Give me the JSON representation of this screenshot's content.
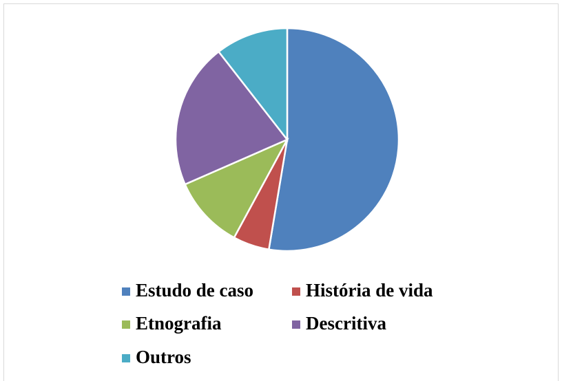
{
  "chart_data": {
    "type": "pie",
    "categories": [
      "Estudo de caso",
      "História de vida",
      "Etnografia",
      "Descritiva",
      "Outros"
    ],
    "values": [
      10,
      1,
      2,
      4,
      2
    ],
    "colors": [
      "#4f81bd",
      "#c0504d",
      "#9bbb59",
      "#8064a2",
      "#4bacc6"
    ],
    "legend": "bottom"
  }
}
